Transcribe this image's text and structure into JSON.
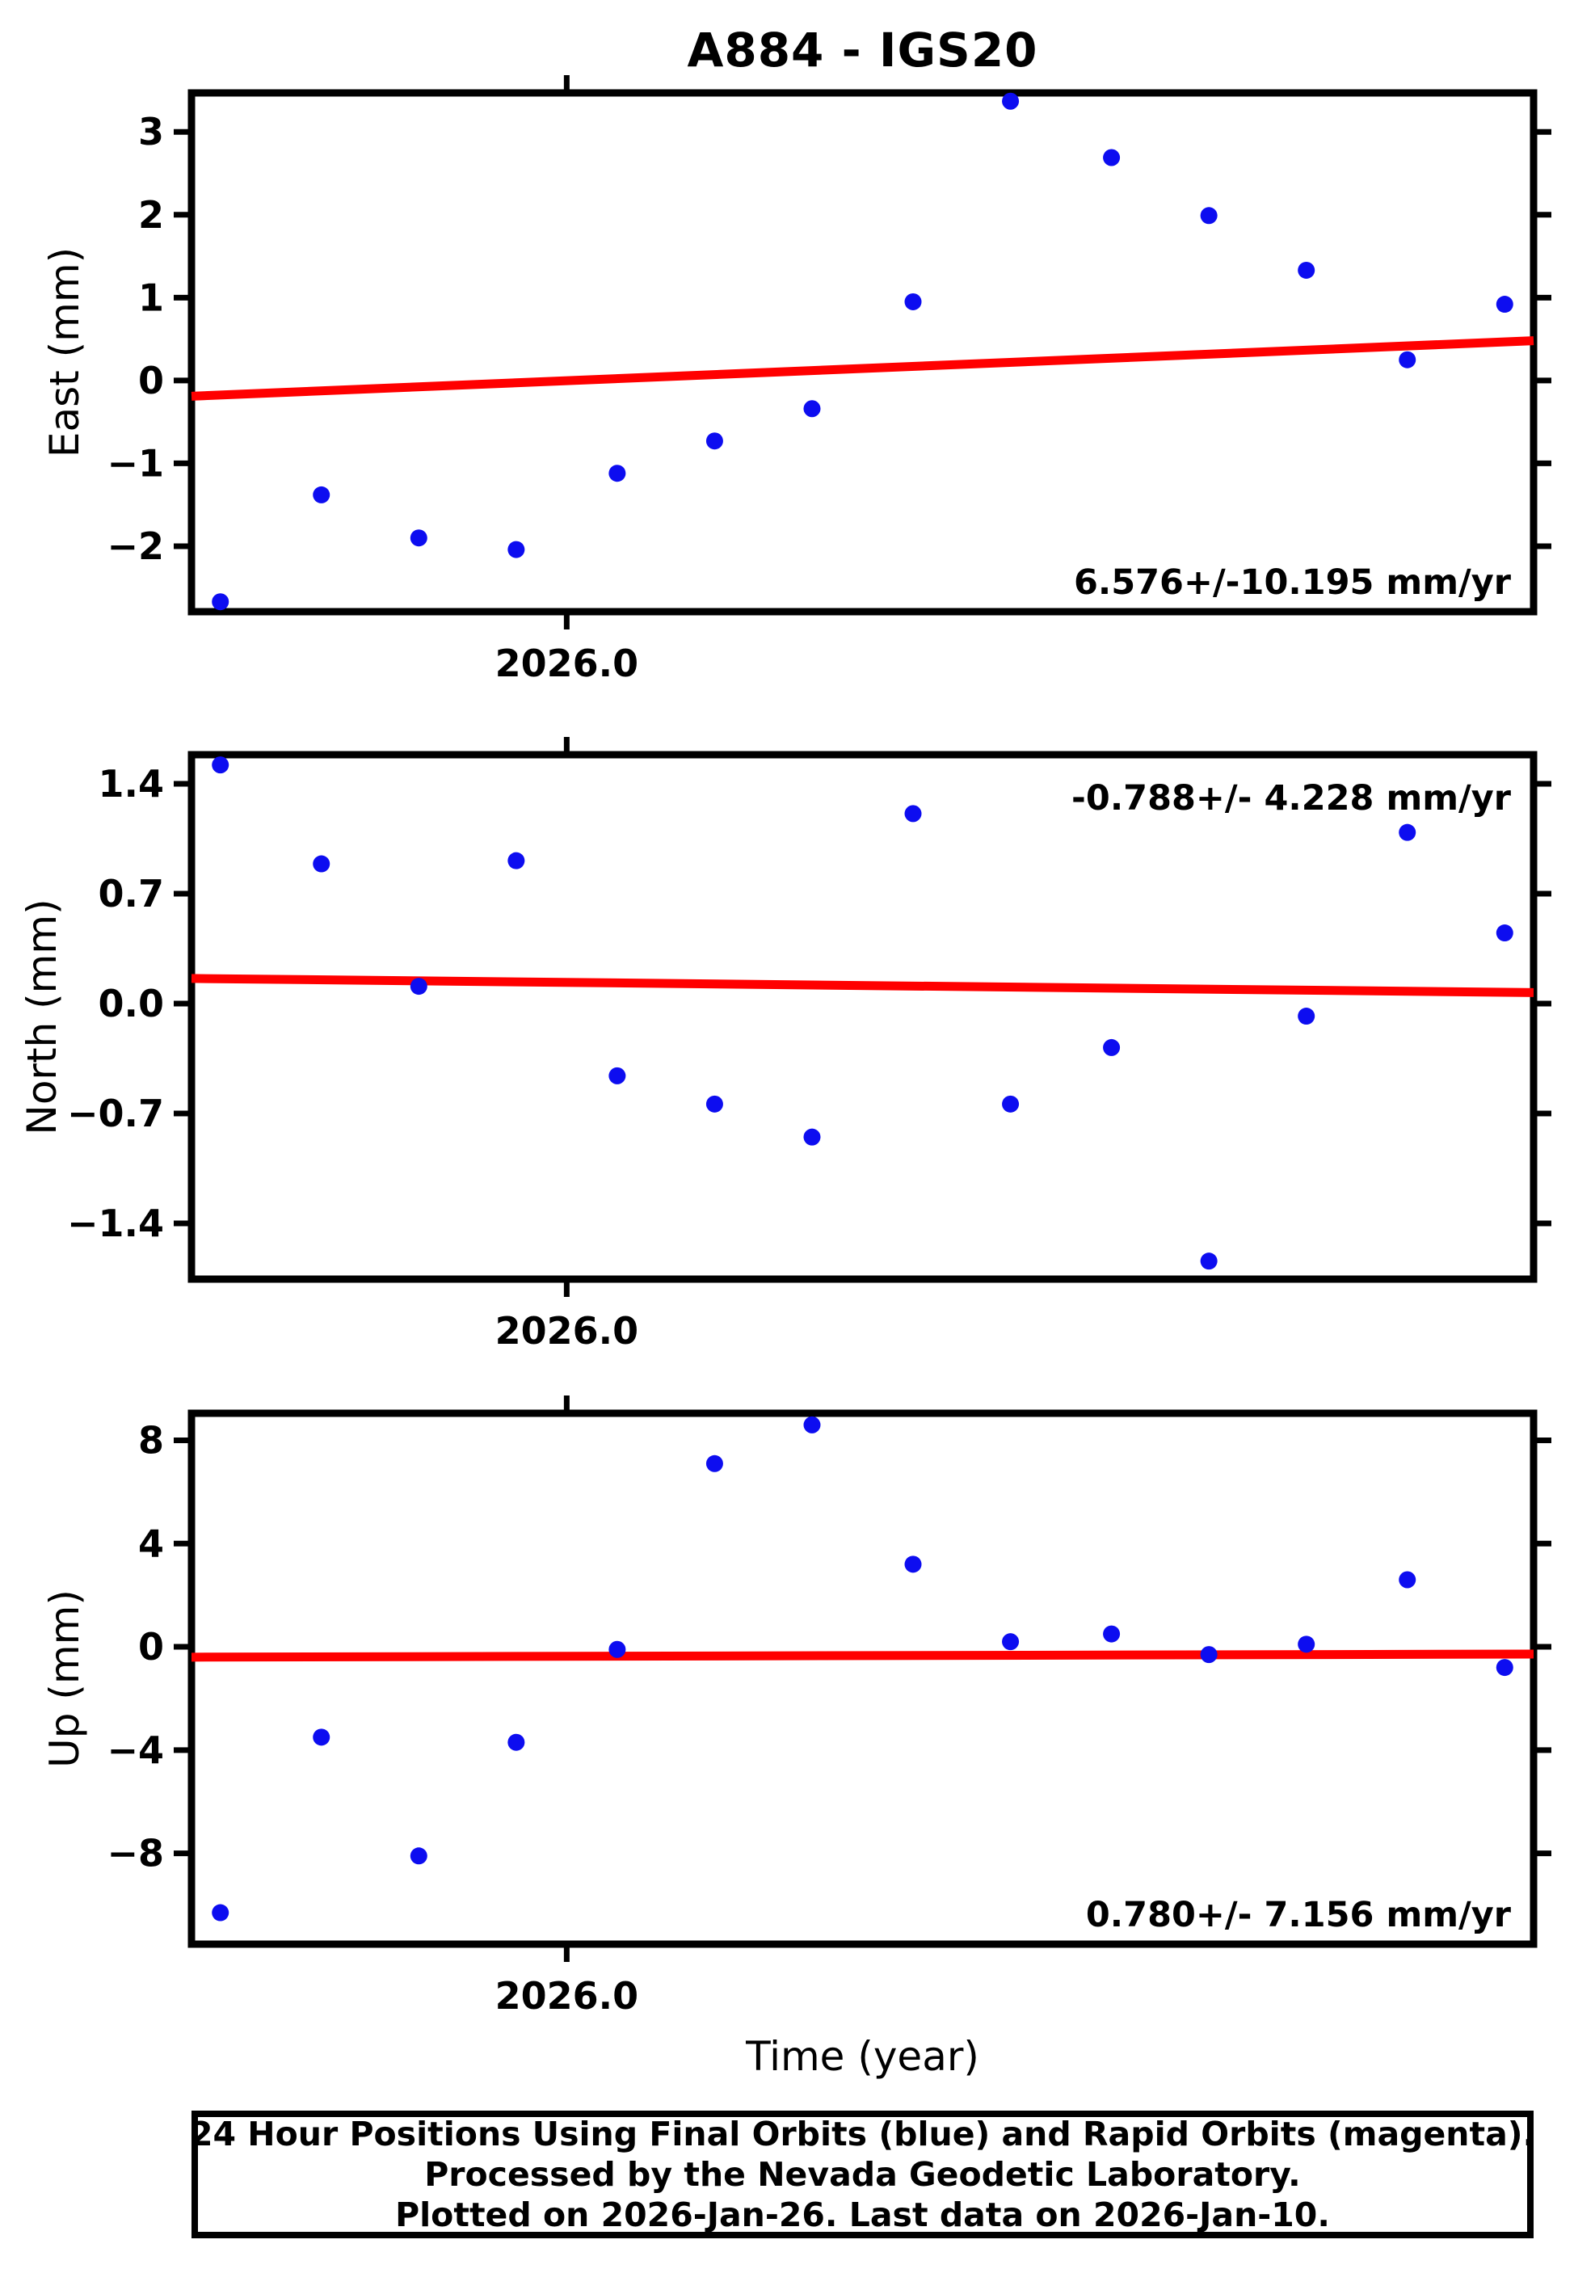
{
  "title": "A884 - IGS20",
  "xlabel": "Time (year)",
  "colors": {
    "points": "#0d0df0",
    "trend": "#ff0000",
    "frame": "#000000",
    "background": "#ffffff"
  },
  "caption": {
    "lines": [
      "24 Hour Positions Using Final Orbits (blue) and Rapid Orbits (magenta).",
      "Processed by the Nevada Geodetic Laboratory.",
      "Plotted on 2026-Jan-26. Last data on 2026-Jan-10."
    ]
  },
  "chart_data": [
    {
      "type": "scatter",
      "ylabel": "East (mm)",
      "annotation": "6.576+/-10.195 mm/yr",
      "annotation_valign": "bottom",
      "xlim": [
        2025.9896,
        2026.0268
      ],
      "ylim": [
        -2.79,
        3.47
      ],
      "xticks": [
        {
          "v": 2026.0,
          "label": "2026.0"
        }
      ],
      "yticks": [
        {
          "v": 3,
          "label": "3"
        },
        {
          "v": 2,
          "label": "2"
        },
        {
          "v": 1,
          "label": "1"
        },
        {
          "v": 0,
          "label": "0"
        },
        {
          "v": -1,
          "label": "−1"
        },
        {
          "v": -2,
          "label": "−2"
        }
      ],
      "x": [
        2025.9904,
        2025.9932,
        2025.9959,
        2025.9986,
        2026.0014,
        2026.0041,
        2026.0068,
        2026.0096,
        2026.0123,
        2026.0151,
        2026.0178,
        2026.0205,
        2026.0233,
        2026.026
      ],
      "y": [
        -2.67,
        -1.38,
        -1.9,
        -2.04,
        -1.12,
        -0.73,
        -0.34,
        0.95,
        3.37,
        2.69,
        1.99,
        1.33,
        0.25,
        0.92
      ],
      "trend": {
        "value_at_left": -0.19,
        "value_at_right": 0.48
      },
      "grid": false,
      "legend": "none"
    },
    {
      "type": "scatter",
      "ylabel": "North (mm)",
      "annotation": "-0.788+/- 4.228 mm/yr",
      "annotation_valign": "top",
      "xlim": [
        2025.9896,
        2026.0268
      ],
      "ylim": [
        -1.755,
        1.585
      ],
      "xticks": [
        {
          "v": 2026.0,
          "label": "2026.0"
        }
      ],
      "yticks": [
        {
          "v": 1.4,
          "label": "1.4"
        },
        {
          "v": 0.7,
          "label": "0.7"
        },
        {
          "v": 0.0,
          "label": "0.0"
        },
        {
          "v": -0.7,
          "label": "−0.7"
        },
        {
          "v": -1.4,
          "label": "−1.4"
        }
      ],
      "x": [
        2025.9904,
        2025.9932,
        2025.9959,
        2025.9986,
        2026.0014,
        2026.0041,
        2026.0068,
        2026.0096,
        2026.0123,
        2026.0151,
        2026.0178,
        2026.0205,
        2026.0233,
        2026.026
      ],
      "y": [
        1.52,
        0.89,
        0.11,
        0.91,
        -0.46,
        -0.64,
        -0.85,
        1.21,
        -0.64,
        -0.28,
        -1.64,
        -0.08,
        1.09,
        0.45
      ],
      "trend": {
        "value_at_left": 0.16,
        "value_at_right": 0.07
      },
      "grid": false,
      "legend": "none"
    },
    {
      "type": "scatter",
      "ylabel": "Up (mm)",
      "annotation": "0.780+/- 7.156 mm/yr",
      "annotation_valign": "bottom",
      "xlim": [
        2025.9896,
        2026.0268
      ],
      "ylim": [
        -11.52,
        9.05
      ],
      "xticks": [
        {
          "v": 2026.0,
          "label": "2026.0"
        }
      ],
      "yticks": [
        {
          "v": 8,
          "label": "8"
        },
        {
          "v": 4,
          "label": "4"
        },
        {
          "v": 0,
          "label": "0"
        },
        {
          "v": -4,
          "label": "−4"
        },
        {
          "v": -8,
          "label": "−8"
        }
      ],
      "x": [
        2025.9904,
        2025.9932,
        2025.9959,
        2025.9986,
        2026.0014,
        2026.0041,
        2026.0068,
        2026.0096,
        2026.0123,
        2026.0151,
        2026.0178,
        2026.0205,
        2026.0233,
        2026.026
      ],
      "y": [
        -10.3,
        -3.5,
        -8.1,
        -3.7,
        -0.1,
        7.1,
        8.6,
        3.2,
        0.2,
        0.5,
        -0.3,
        0.1,
        2.6,
        -0.8
      ],
      "trend": {
        "value_at_left": -0.4,
        "value_at_right": -0.28
      },
      "grid": false,
      "legend": "none"
    }
  ]
}
